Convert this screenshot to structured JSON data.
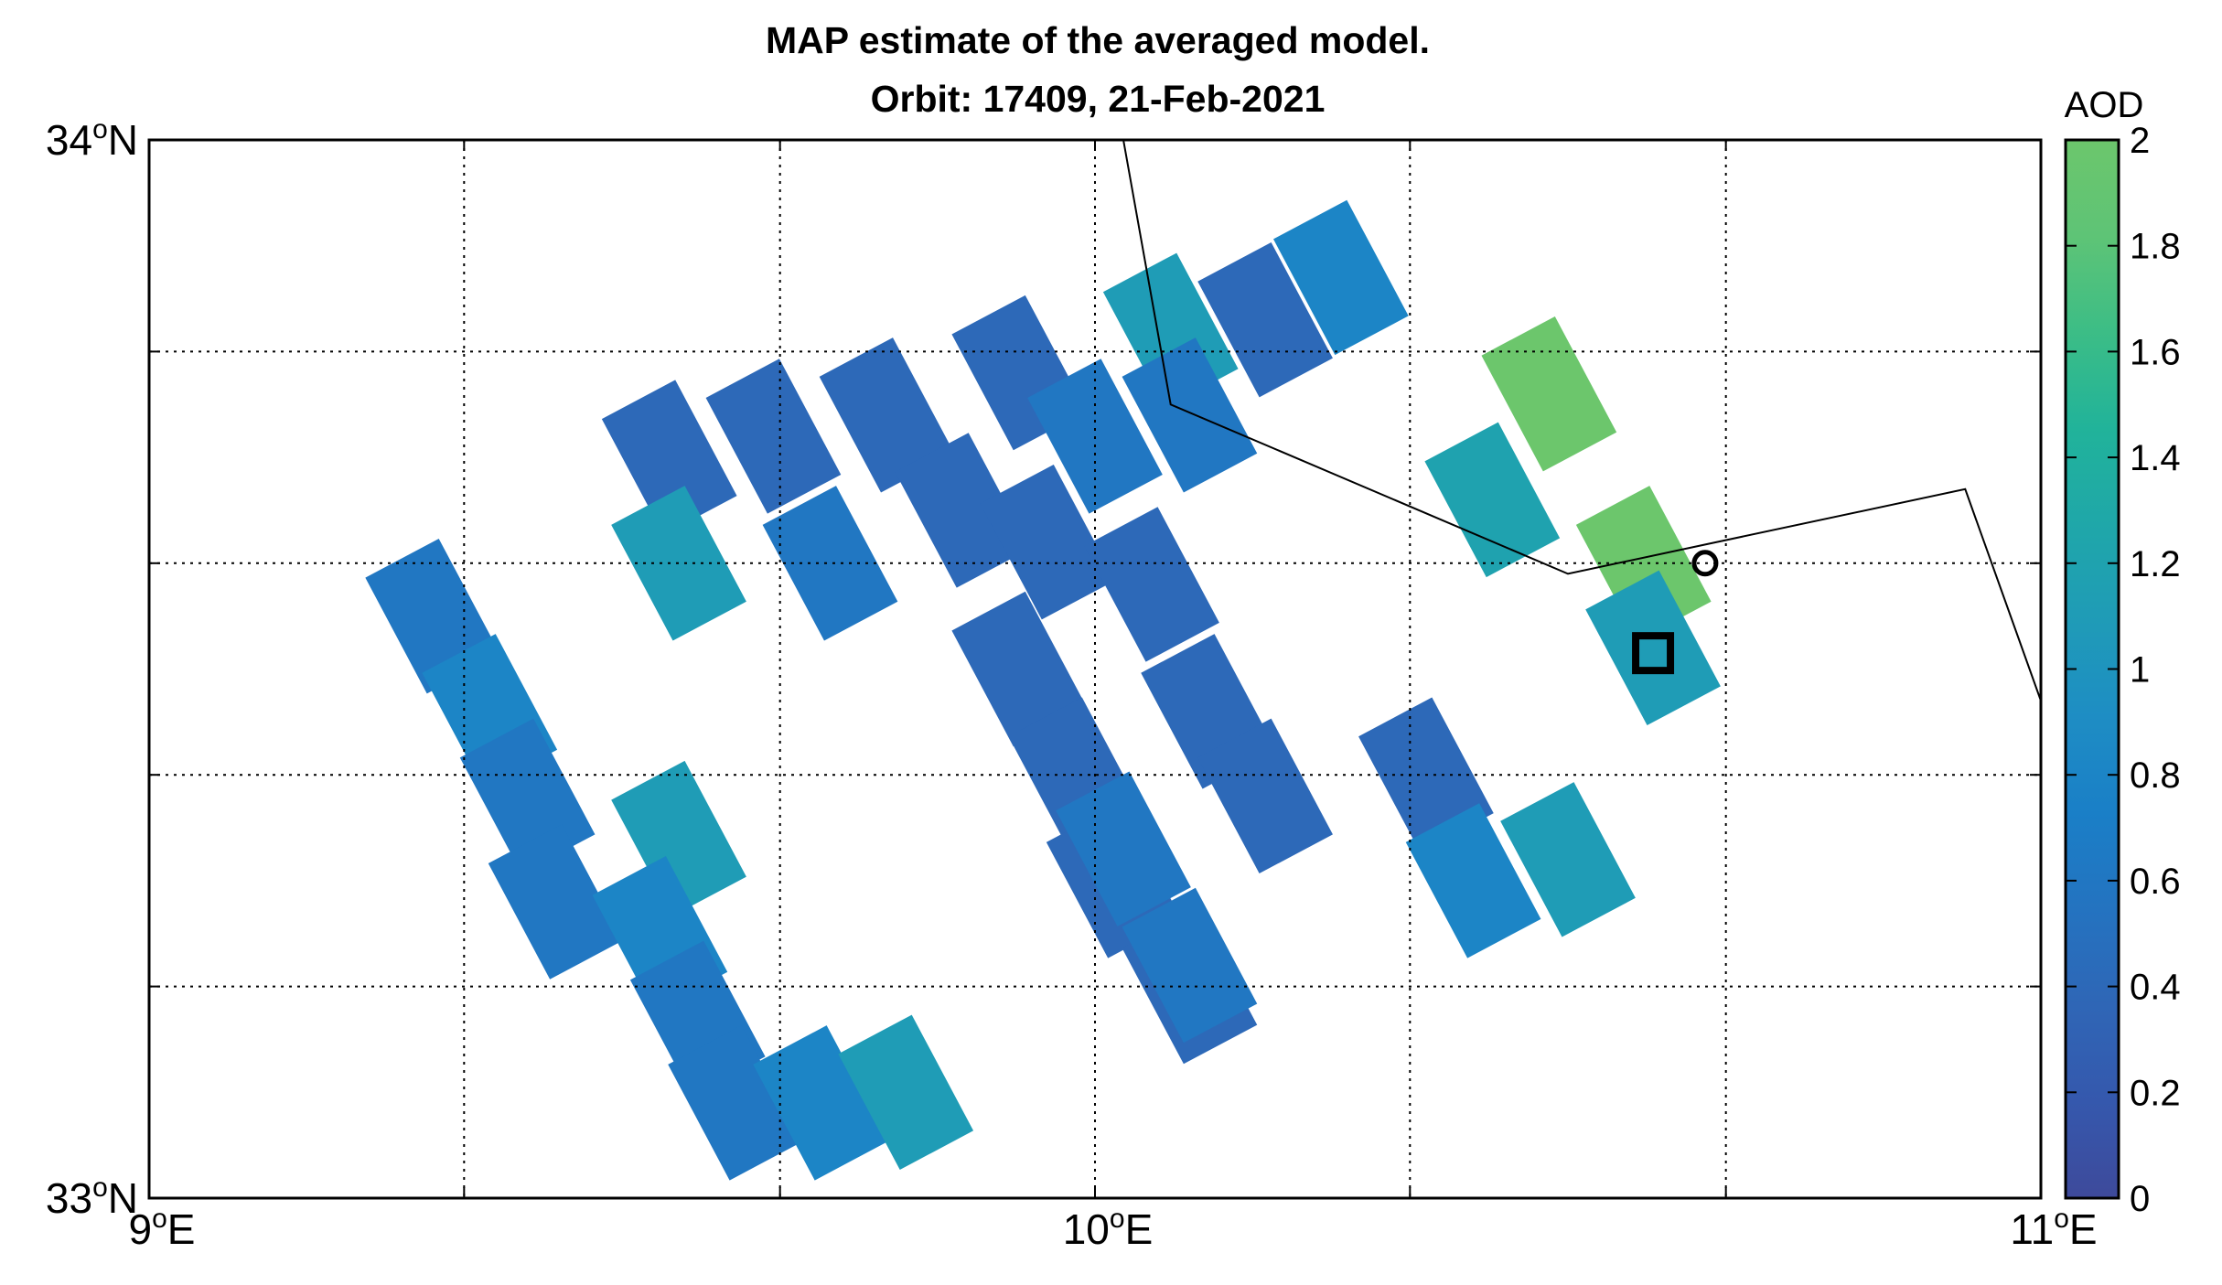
{
  "chart_data": {
    "type": "heatmap",
    "title": "MAP estimate of the averaged model.",
    "subtitle": "Orbit: 17409, 21-Feb-2021",
    "xlim": [
      9,
      11
    ],
    "ylim": [
      33,
      34
    ],
    "x_major_ticks": [
      {
        "value": 9,
        "deg": "9",
        "hemi": "E"
      },
      {
        "value": 10,
        "deg": "10",
        "hemi": "E"
      },
      {
        "value": 11,
        "deg": "11",
        "hemi": "E"
      }
    ],
    "y_major_ticks": [
      {
        "value": 33,
        "deg": "33",
        "hemi": "N"
      },
      {
        "value": 34,
        "deg": "34",
        "hemi": "N"
      }
    ],
    "x_grid": [
      9.333,
      9.667,
      10.0,
      10.333,
      10.667
    ],
    "y_grid": [
      33.2,
      33.4,
      33.6,
      33.8
    ],
    "grid": true,
    "colorbar": {
      "label": "AOD",
      "range": [
        0,
        2
      ],
      "ticks": [
        "0",
        "0.2",
        "0.4",
        "0.6",
        "0.8",
        "1",
        "1.2",
        "1.4",
        "1.6",
        "1.8",
        "2"
      ],
      "colormap": [
        "#3e4a9b",
        "#3558ad",
        "#2f66b6",
        "#2473c0",
        "#1a7fc7",
        "#1e8dc4",
        "#1f9bb7",
        "#1fa7a9",
        "#21b39a",
        "#3cbd86",
        "#5ec476",
        "#6cc66c"
      ]
    },
    "pixels": [
      {
        "lon": 9.3,
        "lat": 33.55,
        "aod": 0.6
      },
      {
        "lon": 9.36,
        "lat": 33.46,
        "aod": 0.8
      },
      {
        "lon": 9.4,
        "lat": 33.38,
        "aod": 0.6
      },
      {
        "lon": 9.43,
        "lat": 33.28,
        "aod": 0.6
      },
      {
        "lon": 9.56,
        "lat": 33.34,
        "aod": 1.1
      },
      {
        "lon": 9.54,
        "lat": 33.25,
        "aod": 0.8
      },
      {
        "lon": 9.58,
        "lat": 33.17,
        "aod": 0.6
      },
      {
        "lon": 9.62,
        "lat": 33.09,
        "aod": 0.6
      },
      {
        "lon": 9.71,
        "lat": 33.09,
        "aod": 0.8
      },
      {
        "lon": 9.8,
        "lat": 33.1,
        "aod": 1.1
      },
      {
        "lon": 9.55,
        "lat": 33.7,
        "aod": 0.4
      },
      {
        "lon": 9.56,
        "lat": 33.6,
        "aod": 1.1
      },
      {
        "lon": 9.66,
        "lat": 33.72,
        "aod": 0.4
      },
      {
        "lon": 9.72,
        "lat": 33.6,
        "aod": 0.6
      },
      {
        "lon": 9.78,
        "lat": 33.74,
        "aod": 0.4
      },
      {
        "lon": 9.86,
        "lat": 33.65,
        "aod": 0.4
      },
      {
        "lon": 9.92,
        "lat": 33.5,
        "aod": 0.4
      },
      {
        "lon": 9.98,
        "lat": 33.4,
        "aod": 0.4
      },
      {
        "lon": 10.02,
        "lat": 33.3,
        "aod": 0.4
      },
      {
        "lon": 10.1,
        "lat": 33.2,
        "aod": 0.4
      },
      {
        "lon": 9.95,
        "lat": 33.62,
        "aod": 0.4
      },
      {
        "lon": 10.06,
        "lat": 33.58,
        "aod": 0.4
      },
      {
        "lon": 10.12,
        "lat": 33.46,
        "aod": 0.4
      },
      {
        "lon": 10.18,
        "lat": 33.38,
        "aod": 0.4
      },
      {
        "lon": 9.92,
        "lat": 33.78,
        "aod": 0.4
      },
      {
        "lon": 10.0,
        "lat": 33.72,
        "aod": 0.6
      },
      {
        "lon": 10.08,
        "lat": 33.82,
        "aod": 1.1
      },
      {
        "lon": 10.1,
        "lat": 33.74,
        "aod": 0.6
      },
      {
        "lon": 10.18,
        "lat": 33.83,
        "aod": 0.4
      },
      {
        "lon": 10.26,
        "lat": 33.87,
        "aod": 0.8
      },
      {
        "lon": 10.03,
        "lat": 33.33,
        "aod": 0.6
      },
      {
        "lon": 10.1,
        "lat": 33.22,
        "aod": 0.6
      },
      {
        "lon": 10.35,
        "lat": 33.4,
        "aod": 0.4
      },
      {
        "lon": 10.4,
        "lat": 33.3,
        "aod": 0.8
      },
      {
        "lon": 10.5,
        "lat": 33.32,
        "aod": 1.1
      },
      {
        "lon": 10.48,
        "lat": 33.76,
        "aod": 2.0
      },
      {
        "lon": 10.42,
        "lat": 33.66,
        "aod": 1.2
      },
      {
        "lon": 10.58,
        "lat": 33.6,
        "aod": 2.0
      },
      {
        "lon": 10.59,
        "lat": 33.52,
        "aod": 1.1
      }
    ],
    "border_line": [
      [
        10.03,
        34.0
      ],
      [
        10.08,
        33.75
      ],
      [
        10.5,
        33.59
      ],
      [
        10.92,
        33.67
      ],
      [
        11.0,
        33.47
      ]
    ],
    "markers": [
      {
        "type": "square",
        "lon": 10.59,
        "lat": 33.515
      },
      {
        "type": "circle",
        "lon": 10.645,
        "lat": 33.6
      }
    ]
  }
}
